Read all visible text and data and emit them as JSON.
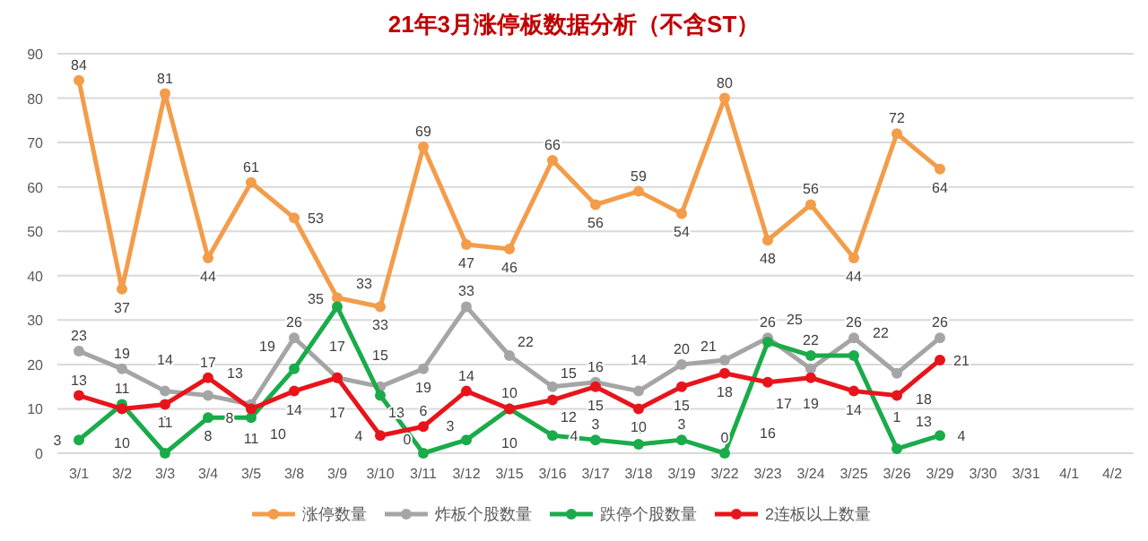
{
  "chart_data": {
    "type": "line",
    "title": "21年3月涨停板数据分析（不含ST）",
    "categories": [
      "3/1",
      "3/2",
      "3/3",
      "3/4",
      "3/5",
      "3/8",
      "3/9",
      "3/10",
      "3/11",
      "3/12",
      "3/15",
      "3/16",
      "3/17",
      "3/18",
      "3/19",
      "3/22",
      "3/23",
      "3/24",
      "3/25",
      "3/26",
      "3/29",
      "3/30",
      "3/31",
      "4/1",
      "4/2"
    ],
    "series": [
      {
        "name": "涨停数量",
        "color": "#f39c4a",
        "values": [
          84,
          37,
          81,
          44,
          61,
          53,
          35,
          33,
          69,
          47,
          46,
          66,
          56,
          59,
          54,
          80,
          48,
          56,
          44,
          72,
          64,
          null,
          null,
          null,
          null
        ]
      },
      {
        "name": "炸板个股数量",
        "color": "#a5a5a5",
        "values": [
          23,
          19,
          14,
          13,
          11,
          26,
          17,
          15,
          19,
          33,
          22,
          15,
          16,
          14,
          20,
          21,
          26,
          19,
          26,
          18,
          26,
          null,
          null,
          null,
          null
        ]
      },
      {
        "name": "跌停个股数量",
        "color": "#1aab4a",
        "values": [
          3,
          11,
          0,
          8,
          8,
          19,
          33,
          13,
          0,
          3,
          10,
          4,
          3,
          2,
          3,
          0,
          25,
          22,
          22,
          1,
          4,
          null,
          null,
          null,
          null
        ]
      },
      {
        "name": "2连板以上数量",
        "color": "#e8141b",
        "values": [
          13,
          10,
          11,
          17,
          10,
          14,
          17,
          4,
          6,
          14,
          10,
          12,
          15,
          10,
          15,
          18,
          16,
          17,
          14,
          13,
          21,
          null,
          null,
          null,
          null
        ]
      }
    ],
    "ylim": [
      0,
      90
    ],
    "yticks": [
      0,
      10,
      20,
      30,
      40,
      50,
      60,
      70,
      80,
      90
    ],
    "grid": "y",
    "legend": "bottom",
    "marker": "circle",
    "data_labels": true
  }
}
